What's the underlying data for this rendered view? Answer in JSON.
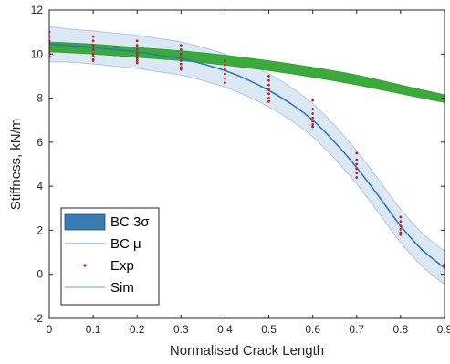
{
  "chart_data": {
    "type": "line",
    "xlabel": "Normalised Crack Length",
    "ylabel": "Stiffness, kN/m",
    "xlim": [
      0,
      0.9
    ],
    "ylim": [
      -2,
      12
    ],
    "xticks": [
      0,
      0.1,
      0.2,
      0.3,
      0.4,
      0.5,
      0.6,
      0.7,
      0.8,
      0.9
    ],
    "xtick_labels": [
      "0",
      "0.1",
      "0.2",
      "0.3",
      "0.4",
      "0.5",
      "0.6",
      "0.7",
      "0.8",
      "0.9"
    ],
    "yticks": [
      -2,
      0,
      2,
      4,
      6,
      8,
      10,
      12
    ],
    "ytick_labels": [
      "-2",
      "0",
      "2",
      "4",
      "6",
      "8",
      "10",
      "12"
    ],
    "grid": false,
    "legend": {
      "position": "bottom-left",
      "entries": [
        {
          "label": "BC 3σ",
          "style": "patch",
          "color": "#3a7ab5"
        },
        {
          "label": "BC μ",
          "style": "line",
          "color": "#4a8fcf"
        },
        {
          "label": "Exp",
          "style": "dot",
          "color": "#cc1f1f"
        },
        {
          "label": "Sim",
          "style": "line",
          "color": "#66bb66"
        }
      ]
    },
    "series": [
      {
        "name": "BC μ",
        "style": "line",
        "color": "#2e78b7",
        "x": [
          0,
          0.05,
          0.1,
          0.15,
          0.2,
          0.25,
          0.3,
          0.35,
          0.4,
          0.45,
          0.5,
          0.55,
          0.6,
          0.65,
          0.7,
          0.75,
          0.8,
          0.85,
          0.9
        ],
        "y": [
          10.45,
          10.38,
          10.3,
          10.2,
          10.1,
          9.95,
          9.8,
          9.55,
          9.25,
          8.85,
          8.35,
          7.75,
          7.0,
          6.0,
          4.85,
          3.55,
          2.2,
          1.1,
          0.3
        ]
      },
      {
        "name": "BC 3σ",
        "style": "band",
        "color": "#a9c9e8",
        "x": [
          0,
          0.05,
          0.1,
          0.15,
          0.2,
          0.25,
          0.3,
          0.35,
          0.4,
          0.45,
          0.5,
          0.55,
          0.6,
          0.65,
          0.7,
          0.75,
          0.8,
          0.85,
          0.9
        ],
        "lower": [
          9.65,
          9.63,
          9.55,
          9.45,
          9.35,
          9.2,
          9.05,
          8.8,
          8.5,
          8.1,
          7.6,
          7.0,
          6.25,
          5.25,
          4.1,
          2.8,
          1.45,
          0.35,
          -0.45
        ],
        "upper": [
          11.25,
          11.13,
          11.05,
          10.95,
          10.85,
          10.7,
          10.55,
          10.3,
          10.0,
          9.6,
          9.1,
          8.5,
          7.75,
          6.75,
          5.6,
          4.3,
          2.95,
          1.85,
          1.05
        ]
      },
      {
        "name": "Sim",
        "style": "band",
        "color": "#33aa33",
        "x": [
          0,
          0.1,
          0.2,
          0.3,
          0.4,
          0.5,
          0.6,
          0.7,
          0.8,
          0.9
        ],
        "lower": [
          10.1,
          10.0,
          9.85,
          9.7,
          9.5,
          9.25,
          8.95,
          8.6,
          8.2,
          7.8
        ],
        "upper": [
          10.55,
          10.45,
          10.3,
          10.15,
          9.95,
          9.7,
          9.4,
          9.05,
          8.6,
          8.15
        ]
      },
      {
        "name": "Exp",
        "style": "scatter",
        "color": "#cc1f1f",
        "x": [
          0,
          0,
          0,
          0,
          0,
          0,
          0,
          0,
          0.1,
          0.1,
          0.1,
          0.1,
          0.1,
          0.1,
          0.1,
          0.1,
          0.2,
          0.2,
          0.2,
          0.2,
          0.2,
          0.2,
          0.2,
          0.2,
          0.3,
          0.3,
          0.3,
          0.3,
          0.3,
          0.3,
          0.3,
          0.3,
          0.4,
          0.4,
          0.4,
          0.4,
          0.4,
          0.4,
          0.5,
          0.5,
          0.5,
          0.5,
          0.5,
          0.5,
          0.5,
          0.6,
          0.6,
          0.6,
          0.6,
          0.6,
          0.6,
          0.6,
          0.7,
          0.7,
          0.7,
          0.7,
          0.7,
          0.7,
          0.8,
          0.8,
          0.8,
          0.8,
          0.8,
          0.8,
          0.9,
          0.9,
          0.9
        ],
        "y": [
          11.0,
          10.8,
          10.6,
          10.5,
          10.3,
          10.1,
          10.0,
          9.9,
          10.8,
          10.6,
          10.4,
          10.2,
          10.0,
          9.9,
          9.75,
          9.7,
          10.6,
          10.4,
          10.2,
          10.05,
          9.95,
          9.8,
          9.7,
          9.6,
          10.4,
          10.2,
          10.0,
          9.85,
          9.7,
          9.55,
          9.4,
          9.3,
          9.7,
          9.5,
          9.3,
          9.1,
          8.9,
          8.7,
          9.0,
          8.8,
          8.6,
          8.4,
          8.2,
          8.0,
          7.85,
          7.9,
          7.5,
          7.3,
          7.1,
          6.95,
          6.8,
          6.7,
          5.5,
          5.2,
          5.0,
          4.8,
          4.6,
          4.4,
          2.6,
          2.4,
          2.2,
          2.05,
          1.9,
          1.8,
          0.45,
          0.35,
          0.3
        ]
      }
    ]
  }
}
